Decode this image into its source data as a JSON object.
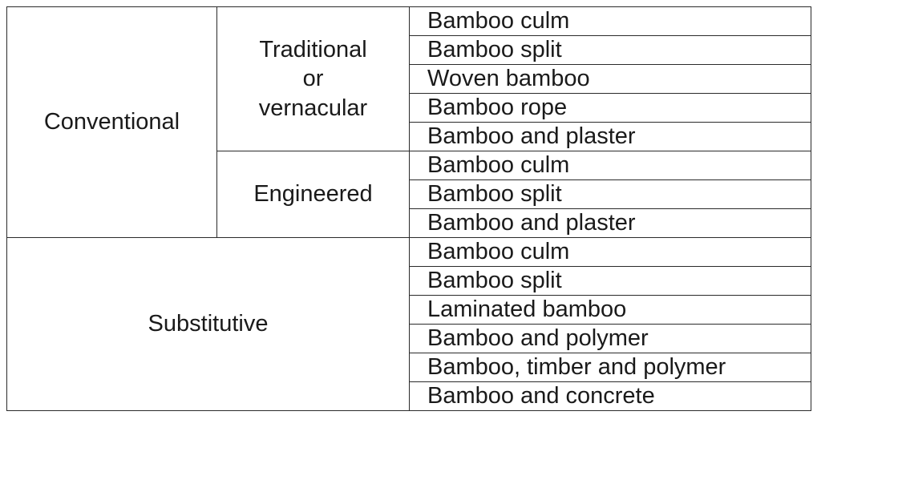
{
  "table": {
    "groups": [
      {
        "label": "Conventional",
        "subgroups": [
          {
            "label": "Traditional\nor\nvernacular",
            "items": [
              "Bamboo culm",
              "Bamboo split",
              "Woven bamboo",
              "Bamboo rope",
              "Bamboo and plaster"
            ]
          },
          {
            "label": "Engineered",
            "items": [
              "Bamboo culm",
              "Bamboo split",
              "Bamboo and plaster"
            ]
          }
        ]
      },
      {
        "label": "Substitutive",
        "items": [
          "Bamboo culm",
          "Bamboo split",
          "Laminated bamboo",
          "Bamboo and polymer",
          "Bamboo, timber and polymer",
          "Bamboo and concrete"
        ]
      }
    ]
  }
}
